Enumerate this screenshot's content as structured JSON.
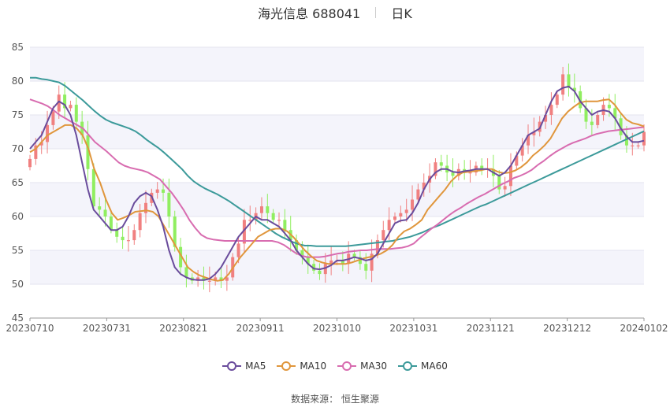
{
  "header": {
    "title": "海光信息 688041",
    "period": "日K"
  },
  "footer": {
    "source_label": "数据来源：",
    "source_name": "恒生聚源"
  },
  "chart_data": {
    "type": "candlestick",
    "y_axis": {
      "min": 45,
      "max": 85,
      "ticks": [
        45,
        50,
        55,
        60,
        65,
        70,
        75,
        80,
        85
      ]
    },
    "x_ticks": [
      "20230710",
      "20230731",
      "20230821",
      "20230911",
      "20231010",
      "20231031",
      "20231121",
      "20231212",
      "20240102"
    ],
    "colors": {
      "up": "#f08080",
      "down": "#90ee60",
      "ma5": "#6a4c9c",
      "ma10": "#e0963c",
      "ma30": "#d86cb0",
      "ma60": "#3c9a9a"
    },
    "legend": [
      {
        "key": "ma5",
        "label": "MA5",
        "color": "#6a4c9c"
      },
      {
        "key": "ma10",
        "label": "MA10",
        "color": "#e0963c"
      },
      {
        "key": "ma30",
        "label": "MA30",
        "color": "#d86cb0"
      },
      {
        "key": "ma60",
        "label": "MA60",
        "color": "#3c9a9a"
      }
    ],
    "closes": [
      68.5,
      70.5,
      71,
      73.5,
      75.5,
      78,
      76,
      76.5,
      74,
      72,
      67,
      61.5,
      61,
      60,
      58,
      57,
      56.5,
      56.5,
      58,
      60.5,
      62,
      63.5,
      64,
      63.5,
      60,
      55.5,
      52.5,
      51,
      50.5,
      51,
      50.5,
      50.5,
      51,
      50.5,
      51,
      54,
      56,
      59.5,
      59.5,
      60.5,
      61.5,
      60.5,
      59.5,
      59.5,
      58,
      56.5,
      55,
      54,
      53,
      52,
      51.5,
      53,
      53.5,
      53.5,
      53,
      54.5,
      54,
      53,
      52,
      54.5,
      56.5,
      58,
      59.5,
      60,
      60.5,
      61,
      62.5,
      64,
      65,
      66,
      68,
      67.5,
      66.5,
      66,
      67,
      66.5,
      66.5,
      67.5,
      67,
      67,
      66,
      64,
      64.5,
      67.5,
      69,
      70.5,
      72,
      72.5,
      74,
      75,
      76.5,
      78,
      81,
      79,
      78.5,
      76,
      74,
      73.5,
      75,
      76.5,
      76,
      74.5,
      72,
      70.5,
      70.5,
      70.5,
      72.5
    ],
    "ma5": [
      70,
      71,
      72,
      74,
      76,
      77,
      76.5,
      75,
      72,
      68,
      64,
      61,
      60,
      59,
      58,
      58,
      58.5,
      60,
      62,
      63,
      63.5,
      63,
      61,
      58.5,
      55,
      52.5,
      51.5,
      51,
      50.7,
      50.6,
      50.6,
      50.8,
      51.5,
      52.5,
      54,
      55.5,
      57,
      58,
      59,
      60,
      59.5,
      59.5,
      59,
      58.5,
      57.5,
      56.5,
      55,
      54,
      53,
      52.3,
      52.2,
      52.4,
      52.8,
      53.5,
      53.5,
      53.7,
      54,
      53.8,
      53.5,
      53.7,
      54.5,
      56,
      57.5,
      59,
      59.4,
      59.5,
      60.5,
      62,
      64,
      65.5,
      66.5,
      67,
      67,
      66.6,
      66.5,
      66.7,
      66.8,
      67,
      67,
      67,
      66.5,
      66,
      66.5,
      67.5,
      69,
      70.5,
      72,
      72.5,
      73,
      75,
      77,
      78.5,
      79,
      79.2,
      78.5,
      77,
      76,
      75,
      75.5,
      75.7,
      75.5,
      74.5,
      73,
      71.8,
      71,
      71,
      71.2
    ],
    "ma10": [
      69.5,
      70,
      71,
      72,
      72.5,
      73,
      73.5,
      73.5,
      73,
      72,
      70,
      67,
      65,
      62.5,
      60.5,
      59.5,
      59.8,
      60.2,
      60.7,
      60.8,
      60.9,
      60.7,
      60,
      58.5,
      57,
      55.5,
      54,
      52.5,
      51.8,
      51.3,
      51,
      50.7,
      50.5,
      50.6,
      51.5,
      52.8,
      54,
      55,
      56,
      57,
      57.5,
      58,
      58.2,
      58.2,
      57.8,
      57,
      56,
      55,
      54.2,
      53.5,
      53.2,
      53,
      53,
      53,
      53,
      53.2,
      53.5,
      53.8,
      54,
      54.2,
      54.5,
      55,
      55.8,
      57,
      57.8,
      58.2,
      58.8,
      59.5,
      61,
      62,
      63,
      64,
      65.2,
      66,
      66.5,
      66.6,
      66.7,
      66.8,
      67,
      67,
      66.6,
      66.4,
      66.5,
      66.8,
      67.3,
      68,
      69,
      69.7,
      70.5,
      71.5,
      73,
      74.5,
      75.5,
      76.2,
      76.8,
      77,
      77,
      77,
      77.2,
      77.3,
      76.5,
      75.3,
      74.3,
      73.8,
      73.6,
      73.3
    ],
    "ma30": [
      77.3,
      77,
      76.7,
      76.3,
      75.7,
      75,
      74.5,
      74,
      73.5,
      73,
      72,
      71,
      70.3,
      69.6,
      68.8,
      68,
      67.5,
      67.2,
      67,
      66.8,
      66.5,
      66,
      65.5,
      64.5,
      63.5,
      62.3,
      61,
      59.5,
      58.3,
      57.3,
      56.8,
      56.6,
      56.5,
      56.4,
      56.4,
      56.4,
      56.4,
      56.4,
      56.4,
      56.4,
      56.4,
      56.4,
      56.2,
      55.8,
      55.2,
      54.6,
      54.2,
      54,
      54,
      54,
      54.1,
      54.3,
      54.5,
      54.6,
      54.8,
      54.9,
      55,
      55,
      55.1,
      55.2,
      55.2,
      55.2,
      55.3,
      55.4,
      55.6,
      56,
      56.8,
      57.5,
      58.2,
      58.8,
      59.5,
      60.2,
      60.8,
      61.3,
      61.9,
      62.4,
      62.9,
      63.3,
      63.8,
      64.3,
      64.8,
      65.2,
      65.7,
      66,
      66.4,
      66.9,
      67.6,
      68.2,
      68.9,
      69.5,
      70,
      70.5,
      70.9,
      71.2,
      71.5,
      71.9,
      72.2,
      72.4,
      72.6,
      72.7,
      72.8,
      72.9,
      73,
      73.1,
      73.2
    ],
    "ma60": [
      80.5,
      80.5,
      80.3,
      80.2,
      80,
      79.8,
      79.3,
      78.6,
      77.9,
      77.2,
      76.4,
      75.6,
      74.9,
      74.3,
      73.9,
      73.6,
      73.3,
      73,
      72.6,
      72,
      71.3,
      70.7,
      70.1,
      69.4,
      68.6,
      67.8,
      67,
      66,
      65.2,
      64.6,
      64.1,
      63.7,
      63.3,
      62.8,
      62.3,
      61.7,
      61.1,
      60.5,
      59.9,
      59.3,
      58.7,
      58.1,
      57.5,
      57,
      56.6,
      56.2,
      55.9,
      55.7,
      55.7,
      55.6,
      55.6,
      55.6,
      55.6,
      55.6,
      55.6,
      55.7,
      55.8,
      55.9,
      56,
      56.1,
      56.2,
      56.3,
      56.4,
      56.6,
      56.8,
      57,
      57.3,
      57.6,
      58,
      58.4,
      58.7,
      59.1,
      59.5,
      59.9,
      60.3,
      60.7,
      61.1,
      61.5,
      61.8,
      62.2,
      62.6,
      63,
      63.4,
      63.8,
      64.2,
      64.6,
      65,
      65.4,
      65.8,
      66.2,
      66.6,
      67,
      67.4,
      67.8,
      68.2,
      68.6,
      69,
      69.4,
      69.8,
      70.2,
      70.6,
      71,
      71.4,
      71.8,
      72.2,
      72.6
    ]
  }
}
